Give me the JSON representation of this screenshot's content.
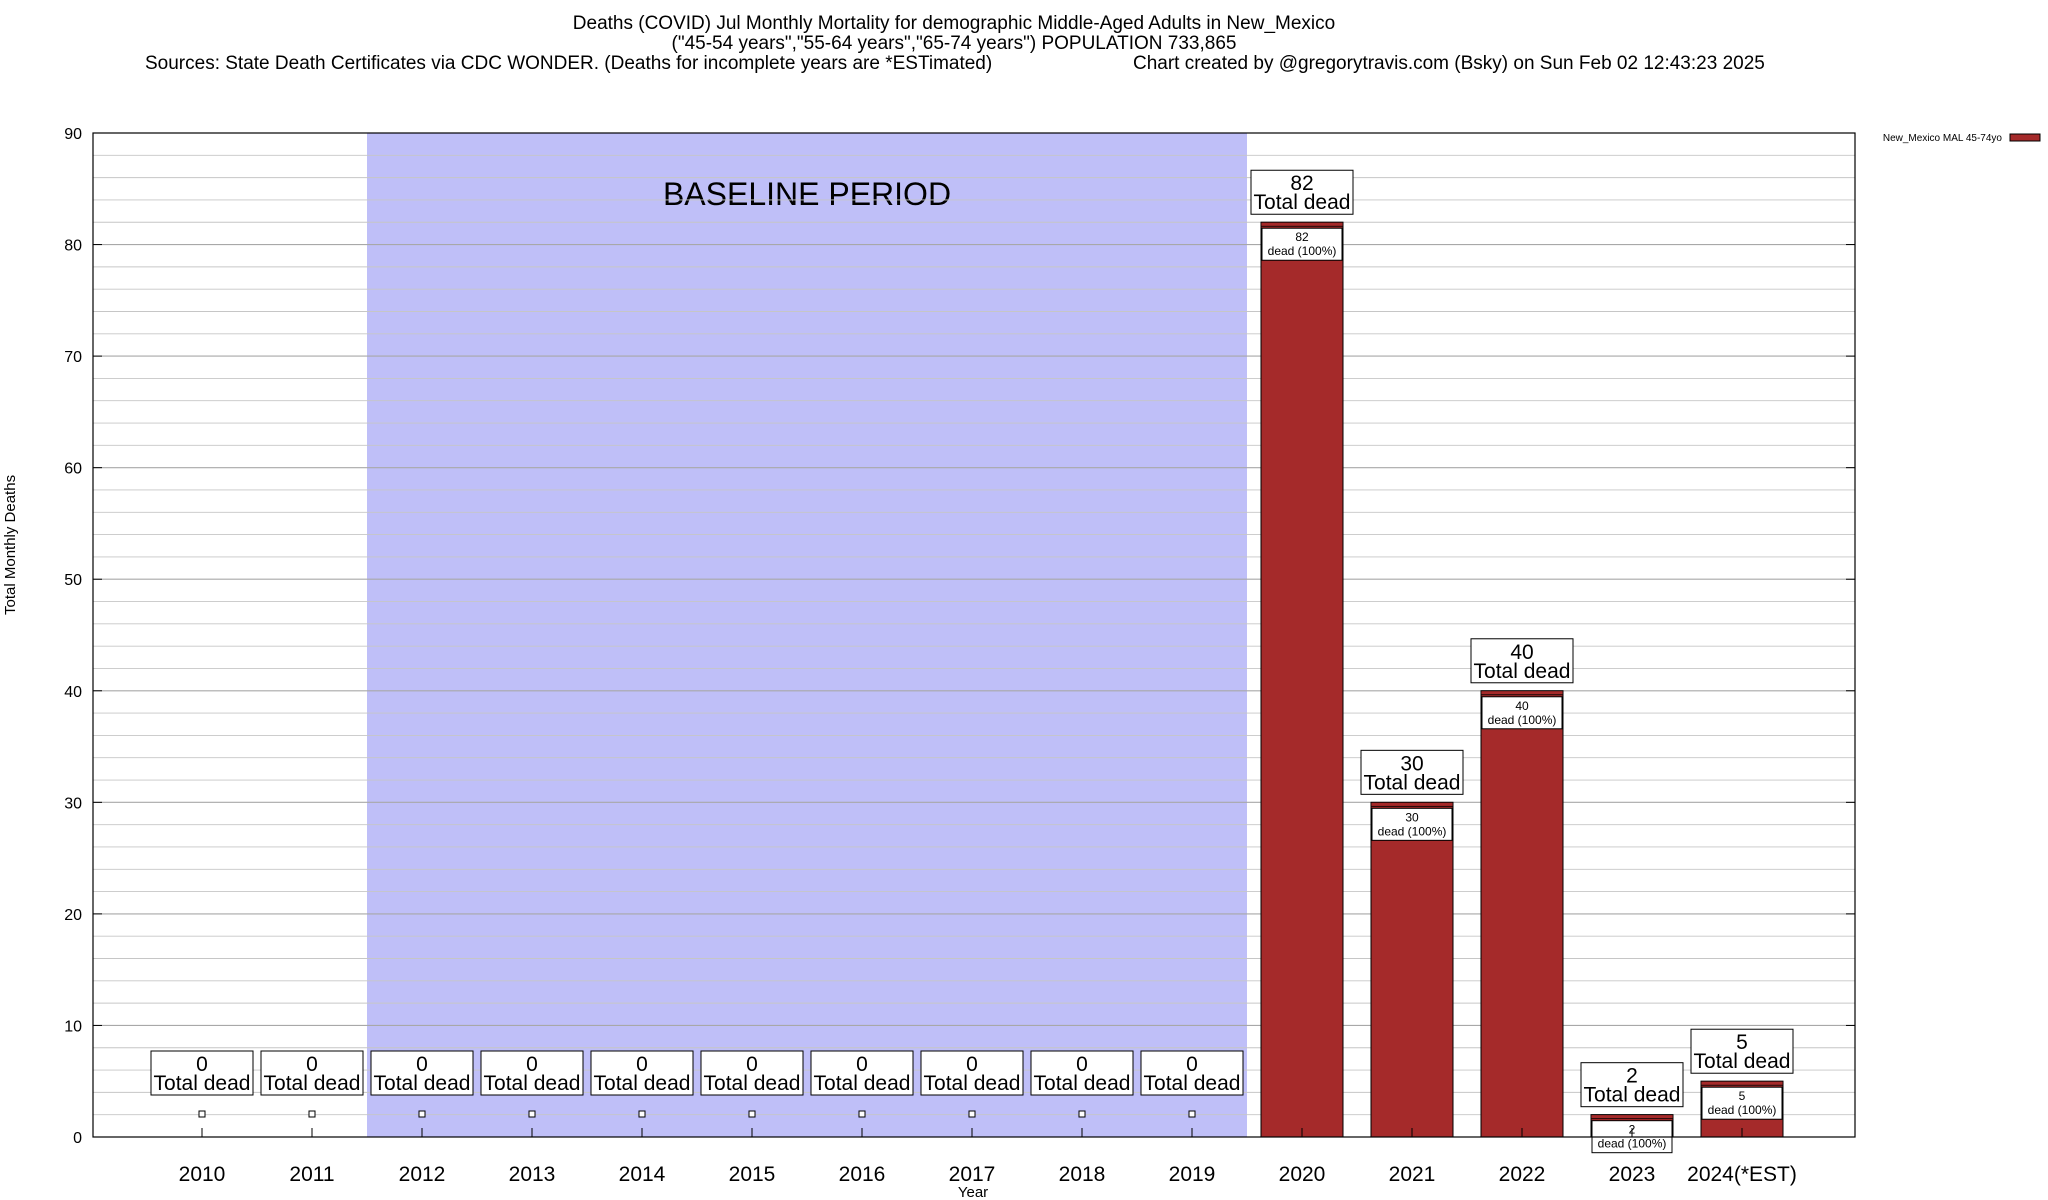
{
  "chart_data": {
    "type": "bar",
    "title": "Deaths (COVID) Jul Monthly Mortality for demographic Middle-Aged Adults in New_Mexico",
    "subtitle": "(\"45-54 years\",\"55-64 years\",\"65-74 years\") POPULATION 733,865",
    "sources": "Sources: State Death Certificates via CDC WONDER. (Deaths for incomplete years are *ESTimated)",
    "credit": "Chart created by @gregorytravis.com (Bsky) on Sun Feb 02 12:43:23 2025",
    "xlabel": "Year",
    "ylabel": "Total Monthly Deaths",
    "ylim": [
      0,
      90
    ],
    "yticks": [
      0,
      10,
      20,
      30,
      40,
      50,
      60,
      70,
      80,
      90
    ],
    "categories": [
      "2010",
      "2011",
      "2012",
      "2013",
      "2014",
      "2015",
      "2016",
      "2017",
      "2018",
      "2019",
      "2020",
      "2021",
      "2022",
      "2023",
      "2024(*EST)"
    ],
    "series": [
      {
        "name": "New_Mexico MAL 45-74yo",
        "color": "#a52a2a",
        "values": [
          0,
          0,
          0,
          0,
          0,
          0,
          0,
          0,
          0,
          0,
          82,
          30,
          40,
          2,
          5
        ]
      }
    ],
    "total_label": "Total dead",
    "inner_label_suffix": "dead (100%)",
    "baseline": {
      "label": "BASELINE PERIOD",
      "from": "2012",
      "to": "2019",
      "color": "#bfbff8"
    },
    "legend_position": "top-right",
    "grid": true
  }
}
